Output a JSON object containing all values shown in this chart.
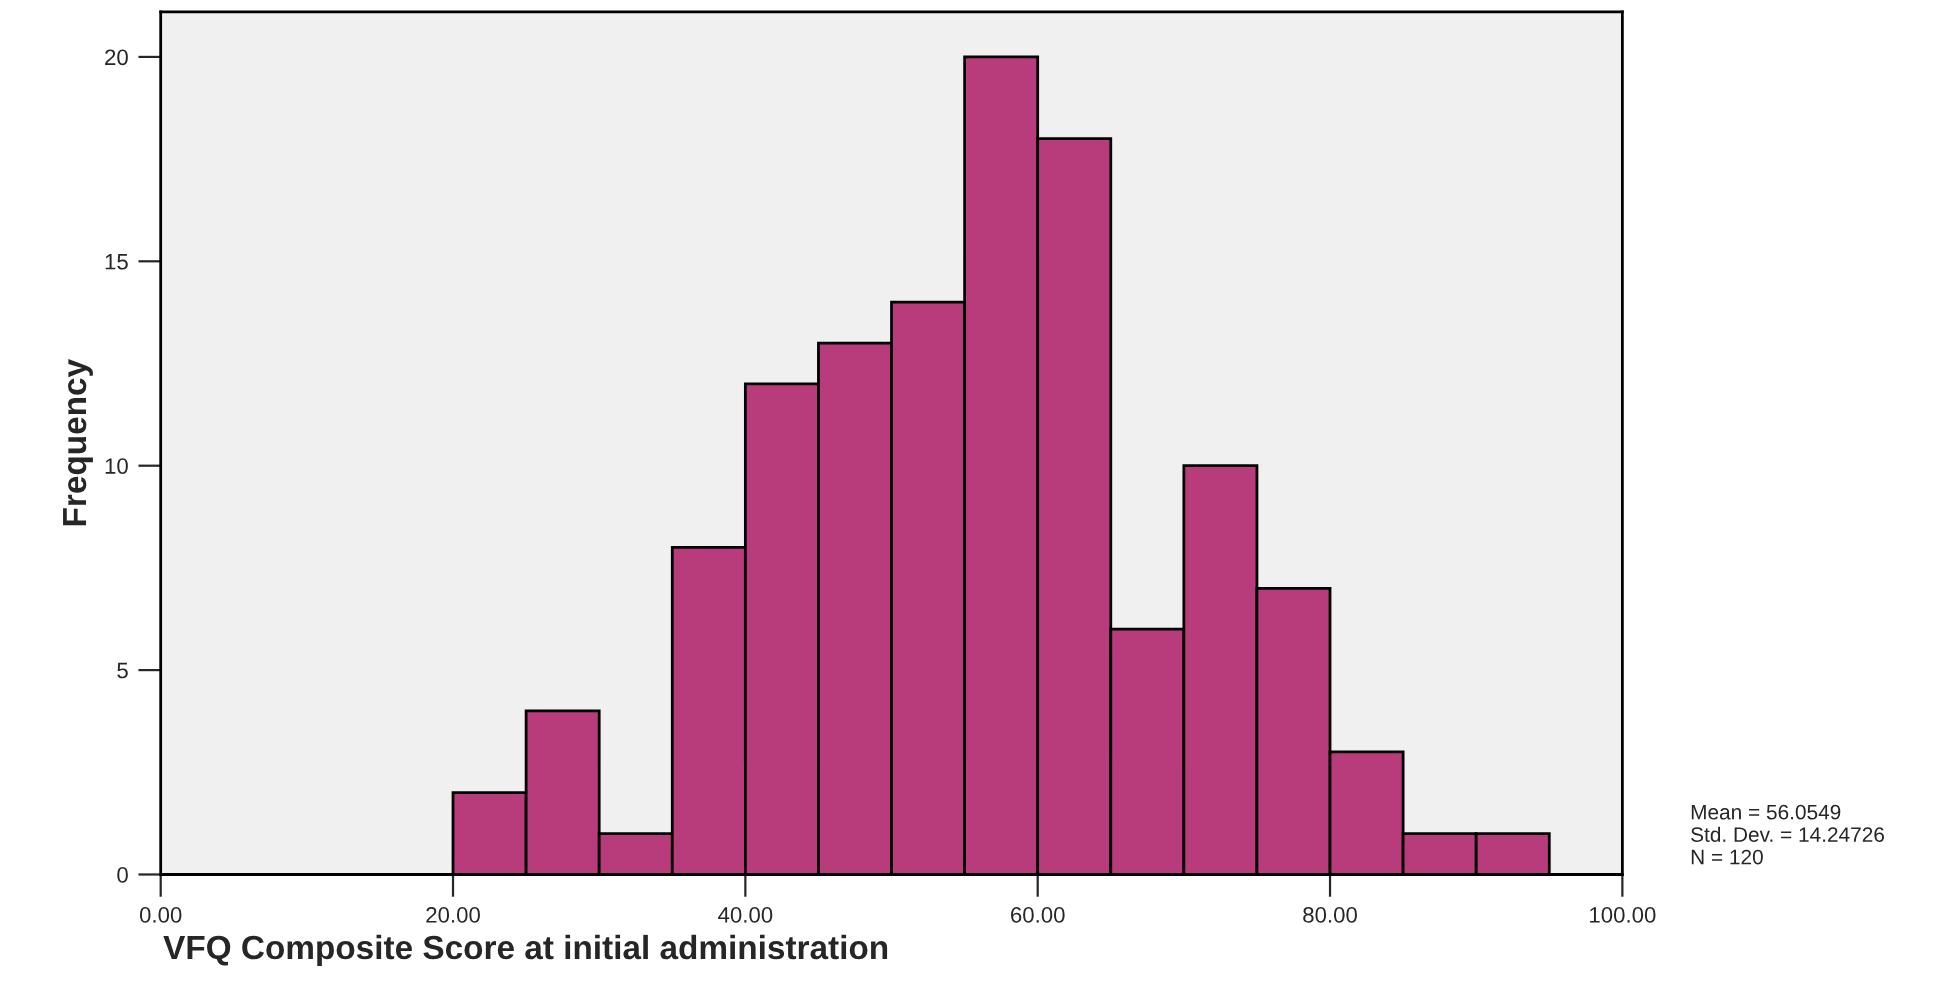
{
  "chart_data": {
    "type": "histogram",
    "xlabel": "VFQ Composite Score at initial administration",
    "ylabel": "Frequency",
    "bins": [
      20,
      25,
      30,
      35,
      40,
      45,
      50,
      55,
      60,
      65,
      70,
      75,
      80,
      85,
      90,
      95
    ],
    "values": [
      2,
      4,
      1,
      8,
      12,
      13,
      14,
      20,
      18,
      6,
      10,
      7,
      3,
      1,
      1
    ],
    "color": "#b83c7c",
    "xlim": [
      0,
      100
    ],
    "ylim": [
      0,
      21.1
    ],
    "xticks": [
      {
        "value": 0,
        "label": "0.00"
      },
      {
        "value": 20,
        "label": "20.00"
      },
      {
        "value": 40,
        "label": "40.00"
      },
      {
        "value": 60,
        "label": "60.00"
      },
      {
        "value": 80,
        "label": "80.00"
      },
      {
        "value": 100,
        "label": "100.00"
      }
    ],
    "yticks": [
      0,
      5,
      10,
      15,
      20
    ],
    "grid": false,
    "legend": false,
    "annotations": [
      "Mean = 56.0549\nStd. Dev. = 14.24726\nN = 120"
    ]
  }
}
